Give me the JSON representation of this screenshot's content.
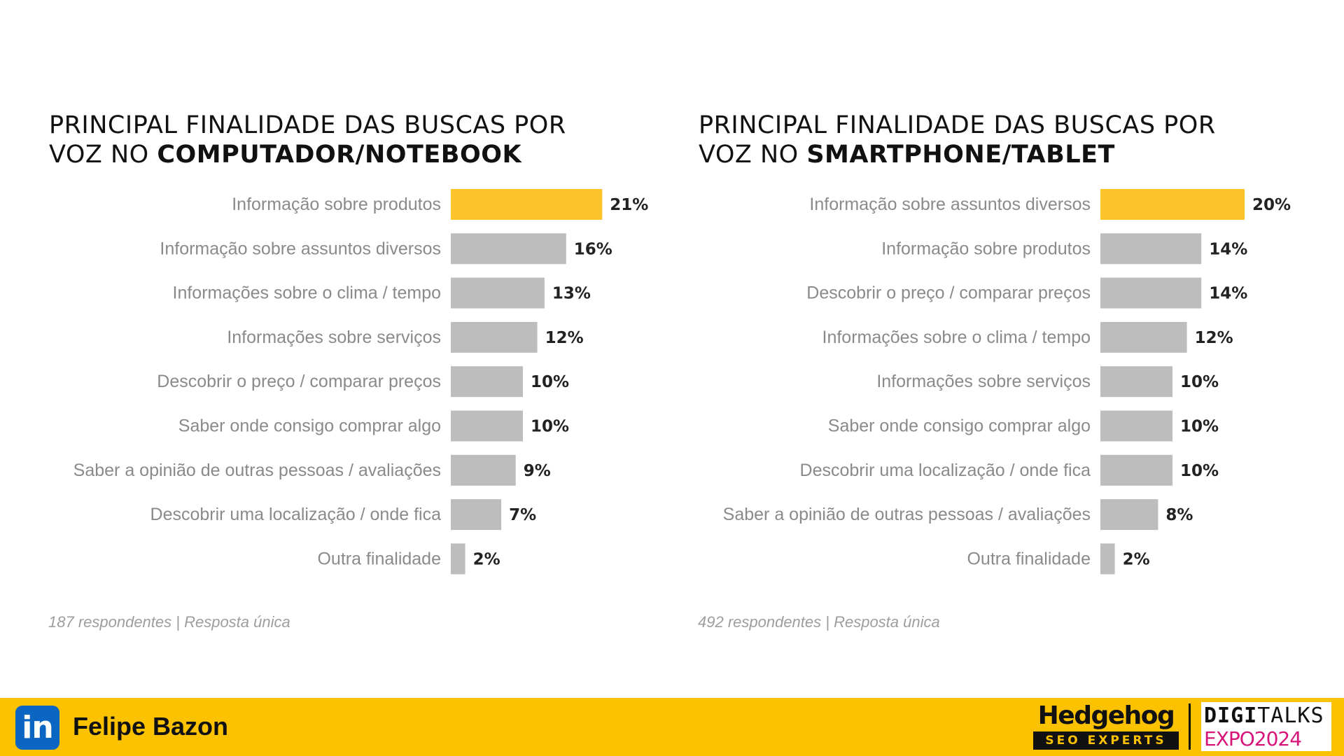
{
  "chart_data": [
    {
      "type": "bar",
      "orientation": "horizontal",
      "title": "PRINCIPAL FINALIDADE DAS BUSCAS POR VOZ NO COMPUTADOR/NOTEBOOK",
      "title_plain": "PRINCIPAL FINALIDADE DAS BUSCAS POR",
      "title_plain2": "VOZ NO ",
      "title_bold": "COMPUTADOR/NOTEBOOK",
      "categories": [
        "Informação sobre produtos",
        "Informação sobre assuntos diversos",
        "Informações sobre o clima / tempo",
        "Informações sobre serviços",
        "Descobrir o preço / comparar preços",
        "Saber onde consigo comprar algo",
        "Saber a opinião de outras pessoas / avaliações",
        "Descobrir uma localização / onde fica",
        "Outra finalidade"
      ],
      "values": [
        21,
        16,
        13,
        12,
        10,
        10,
        9,
        7,
        2
      ],
      "labels": [
        "21%",
        "16%",
        "13%",
        "12%",
        "10%",
        "10%",
        "9%",
        "7%",
        "2%"
      ],
      "unit": "%",
      "highlight_index": 0,
      "colors": {
        "highlight": "#fcc42a",
        "bar": "#bdbdbd",
        "category_text": "#8a8a8a",
        "value_text": "#222222"
      },
      "note": "187 respondentes | Resposta única"
    },
    {
      "type": "bar",
      "orientation": "horizontal",
      "title": "PRINCIPAL FINALIDADE DAS BUSCAS POR VOZ NO SMARTPHONE/TABLET",
      "title_plain": "PRINCIPAL FINALIDADE DAS BUSCAS POR",
      "title_plain2": "VOZ NO ",
      "title_bold": "SMARTPHONE/TABLET",
      "categories": [
        "Informação sobre assuntos diversos",
        "Informação sobre produtos",
        "Descobrir o preço / comparar preços",
        "Informações sobre o clima / tempo",
        "Informações sobre serviços",
        "Saber onde consigo comprar algo",
        "Descobrir uma localização / onde fica",
        "Saber a opinião de outras pessoas / avaliações",
        "Outra finalidade"
      ],
      "values": [
        20,
        14,
        14,
        12,
        10,
        10,
        10,
        8,
        2
      ],
      "labels": [
        "20%",
        "14%",
        "14%",
        "12%",
        "10%",
        "10%",
        "10%",
        "8%",
        "2%"
      ],
      "unit": "%",
      "highlight_index": 0,
      "colors": {
        "highlight": "#fcc42a",
        "bar": "#bdbdbd",
        "category_text": "#8a8a8a",
        "value_text": "#222222"
      },
      "note": "492 respondentes | Resposta única"
    }
  ],
  "footer": {
    "linkedin_icon": "linkedin-icon",
    "linkedin_glyph": "in",
    "author": "Felipe Bazon",
    "brand_name": "Hedgehog",
    "brand_tagline": "SEO EXPERTS",
    "event_top_bold": "DIGI",
    "event_top": "TALKS",
    "event_bottom": "EXPO2024",
    "background_color": "#fcc200"
  }
}
